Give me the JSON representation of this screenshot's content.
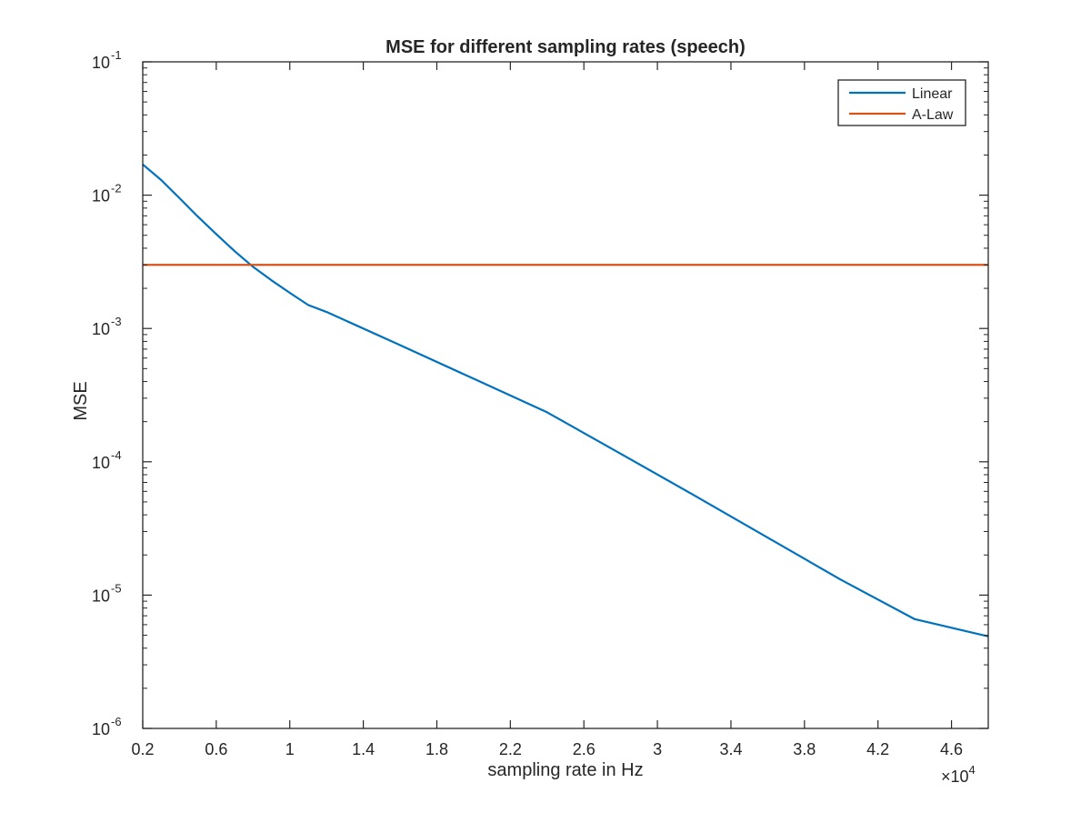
{
  "chart_data": {
    "type": "line",
    "title": "MSE for different sampling rates (speech)",
    "xlabel": "sampling rate in Hz",
    "ylabel": "MSE",
    "x_exponent_label": "×10",
    "x_exponent_power": "4",
    "x_multiplier": 10000,
    "xlim": [
      2000,
      48000
    ],
    "ylim": [
      1e-06,
      0.1
    ],
    "yscale": "log",
    "grid": false,
    "legend_position": "top-right",
    "x_ticks": [
      {
        "value": 2000,
        "label": "0.2"
      },
      {
        "value": 6000,
        "label": "0.6"
      },
      {
        "value": 10000,
        "label": "1"
      },
      {
        "value": 14000,
        "label": "1.4"
      },
      {
        "value": 18000,
        "label": "1.8"
      },
      {
        "value": 22000,
        "label": "2.2"
      },
      {
        "value": 26000,
        "label": "2.6"
      },
      {
        "value": 30000,
        "label": "3"
      },
      {
        "value": 34000,
        "label": "3.4"
      },
      {
        "value": 38000,
        "label": "3.8"
      },
      {
        "value": 42000,
        "label": "4.2"
      },
      {
        "value": 46000,
        "label": "4.6"
      }
    ],
    "y_ticks": [
      {
        "value": 1e-06,
        "base": "10",
        "exp": "-6"
      },
      {
        "value": 1e-05,
        "base": "10",
        "exp": "-5"
      },
      {
        "value": 0.0001,
        "base": "10",
        "exp": "-4"
      },
      {
        "value": 0.001,
        "base": "10",
        "exp": "-3"
      },
      {
        "value": 0.01,
        "base": "10",
        "exp": "-2"
      },
      {
        "value": 0.1,
        "base": "10",
        "exp": "-1"
      }
    ],
    "series": [
      {
        "name": "Linear",
        "color": "#0072BD",
        "x": [
          2000,
          3000,
          4000,
          5000,
          6000,
          7000,
          8000,
          9000,
          10000,
          11000,
          12000,
          16000,
          20000,
          24000,
          28000,
          32000,
          36000,
          40000,
          44000,
          48000
        ],
        "y": [
          0.017,
          0.013,
          0.0095,
          0.0069,
          0.0051,
          0.0038,
          0.0029,
          0.0023,
          0.00185,
          0.0015,
          0.00133,
          0.00075,
          0.00042,
          0.000235,
          0.000115,
          5.6e-05,
          2.7e-05,
          1.3e-05,
          6.6e-06,
          4.9e-06
        ]
      },
      {
        "name": "A-Law",
        "color": "#D95319",
        "x": [
          2000,
          48000
        ],
        "y": [
          0.003,
          0.003
        ]
      }
    ]
  }
}
